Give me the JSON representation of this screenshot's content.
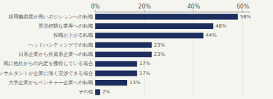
{
  "chart_data": {
    "type": "bar",
    "orientation": "horizontal",
    "categories": [
      "採用難易度が高いポジションへの転職",
      "景況好調な業界への転職",
      "役職が上がる転職",
      "ヘッドハンティングでの転職",
      "日系企業から外資系企業への転職",
      "既に他社からの内定を獲得している場合",
      "コンサルタントが企業に強く交渉できる場合",
      "大手企業からベンチャー企業への転職",
      "その他"
    ],
    "values": [
      58,
      48,
      44,
      23,
      23,
      17,
      17,
      13,
      2
    ],
    "value_labels": [
      "58%",
      "48%",
      "44%",
      "23%",
      "23%",
      "17%",
      "17%",
      "13%",
      "2%"
    ],
    "data_labels": true,
    "color": "#1c2d5e",
    "xlim": [
      0,
      63
    ],
    "xticks": [
      {
        "value": 0,
        "label": "0%"
      },
      {
        "value": 20,
        "label": "20%"
      },
      {
        "value": 40,
        "label": "40%"
      },
      {
        "value": 60,
        "label": "60%"
      }
    ],
    "grid": true
  }
}
